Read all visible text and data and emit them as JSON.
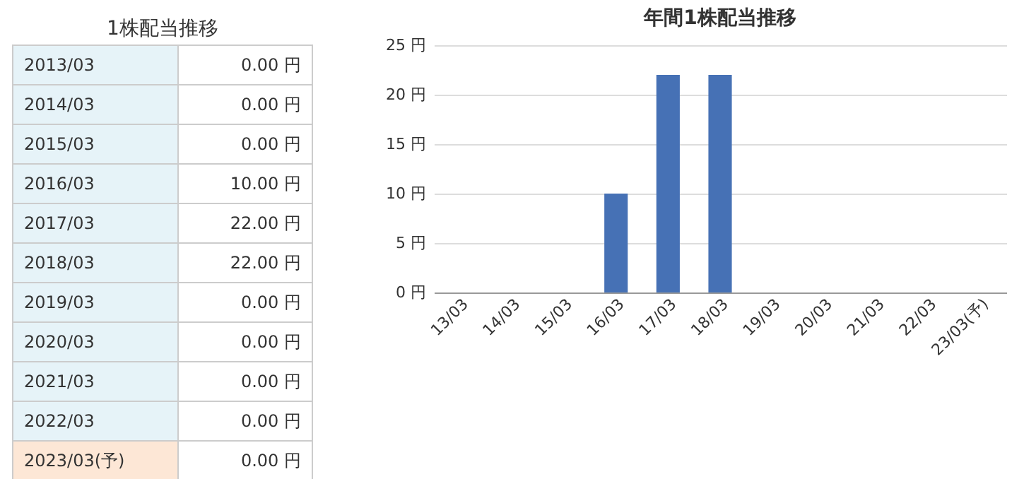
{
  "chart_data": [
    {
      "type": "other",
      "title": "1株配当推移",
      "categories": [
        "2013/03",
        "2014/03",
        "2015/03",
        "2016/03",
        "2017/03",
        "2018/03",
        "2019/03",
        "2020/03",
        "2021/03",
        "2022/03",
        "2023/03(予)"
      ],
      "value_labels": [
        "0.00 円",
        "0.00 円",
        "0.00 円",
        "10.00 円",
        "22.00 円",
        "22.00 円",
        "0.00 円",
        "0.00 円",
        "0.00 円",
        "0.00 円",
        "0.00 円"
      ],
      "colors": [
        "#e6f3f8",
        "#e6f3f8",
        "#e6f3f8",
        "#e6f3f8",
        "#e6f3f8",
        "#e6f3f8",
        "#e6f3f8",
        "#e6f3f8",
        "#e6f3f8",
        "#e6f3f8",
        "#fde7d6"
      ]
    },
    {
      "type": "bar",
      "title": "年間1株配当推移",
      "categories": [
        "13/03",
        "14/03",
        "15/03",
        "16/03",
        "17/03",
        "18/03",
        "19/03",
        "20/03",
        "21/03",
        "22/03",
        "23/03(予)"
      ],
      "values": [
        0,
        0,
        0,
        10,
        22,
        22,
        0,
        0,
        0,
        0,
        0
      ],
      "color": "#4671b5",
      "ylim": [
        0,
        25
      ],
      "yticks": [
        {
          "value": 0,
          "label": "0 円"
        },
        {
          "value": 5,
          "label": "5 円"
        },
        {
          "value": 10,
          "label": "10 円"
        },
        {
          "value": 15,
          "label": "15 円"
        },
        {
          "value": 20,
          "label": "20 円"
        },
        {
          "value": 25,
          "label": "25 円"
        }
      ],
      "grid": "y"
    }
  ]
}
